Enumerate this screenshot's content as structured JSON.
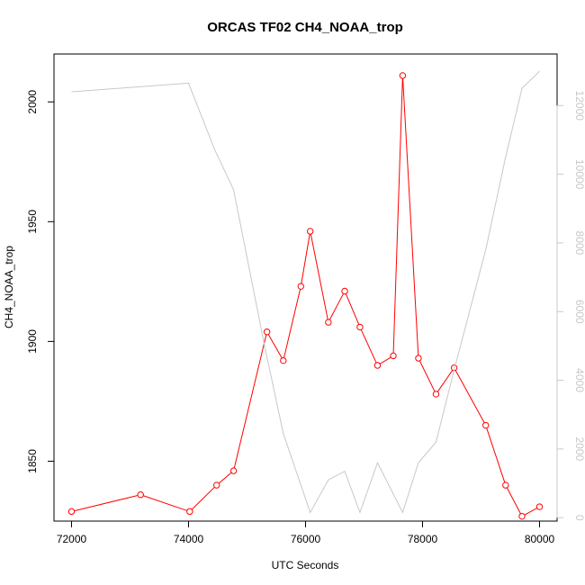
{
  "chart_data": {
    "type": "line",
    "title": "ORCAS TF02 CH4_NOAA_trop",
    "xlabel": "UTC Seconds",
    "ylabel": "CH4_NOAA_trop",
    "xlim": [
      71700,
      80300
    ],
    "ylim": [
      1825,
      2020
    ],
    "y2lim": [
      -100,
      13500
    ],
    "grid": false,
    "x_ticks": [
      "72000",
      "74000",
      "76000",
      "78000",
      "80000"
    ],
    "y_ticks": [
      "1850",
      "1900",
      "1950",
      "2000"
    ],
    "y2_ticks": [
      "0",
      "2000",
      "4000",
      "6000",
      "8000",
      "10000",
      "12000"
    ],
    "series": [
      {
        "color": "#ff0000",
        "axis": "left",
        "markers": true,
        "points": [
          {
            "x": 72000,
            "y": 1829
          },
          {
            "x": 73180,
            "y": 1836
          },
          {
            "x": 74020,
            "y": 1829
          },
          {
            "x": 74480,
            "y": 1840
          },
          {
            "x": 74770,
            "y": 1846
          },
          {
            "x": 75340,
            "y": 1904
          },
          {
            "x": 75620,
            "y": 1892
          },
          {
            "x": 75920,
            "y": 1923
          },
          {
            "x": 76080,
            "y": 1946
          },
          {
            "x": 76390,
            "y": 1908
          },
          {
            "x": 76670,
            "y": 1921
          },
          {
            "x": 76930,
            "y": 1906
          },
          {
            "x": 77230,
            "y": 1890
          },
          {
            "x": 77500,
            "y": 1894
          },
          {
            "x": 77660,
            "y": 2011
          },
          {
            "x": 77930,
            "y": 1893
          },
          {
            "x": 78230,
            "y": 1878
          },
          {
            "x": 78540,
            "y": 1889
          },
          {
            "x": 79080,
            "y": 1865
          },
          {
            "x": 79420,
            "y": 1840
          },
          {
            "x": 79700,
            "y": 1827
          },
          {
            "x": 80000,
            "y": 1831
          }
        ]
      },
      {
        "color": "#c8c8c8",
        "axis": "right",
        "markers": false,
        "points": [
          {
            "x": 72000,
            "y": 12400
          },
          {
            "x": 74000,
            "y": 12650
          },
          {
            "x": 74450,
            "y": 10700
          },
          {
            "x": 74770,
            "y": 9550
          },
          {
            "x": 75300,
            "y": 5000
          },
          {
            "x": 75620,
            "y": 2450
          },
          {
            "x": 76080,
            "y": 150
          },
          {
            "x": 76390,
            "y": 1100
          },
          {
            "x": 76670,
            "y": 1350
          },
          {
            "x": 76930,
            "y": 150
          },
          {
            "x": 77230,
            "y": 1600
          },
          {
            "x": 77660,
            "y": 150
          },
          {
            "x": 77930,
            "y": 1600
          },
          {
            "x": 78230,
            "y": 2200
          },
          {
            "x": 78540,
            "y": 4300
          },
          {
            "x": 79080,
            "y": 7800
          },
          {
            "x": 79420,
            "y": 10500
          },
          {
            "x": 79700,
            "y": 12500
          },
          {
            "x": 80000,
            "y": 13000
          }
        ]
      }
    ]
  }
}
